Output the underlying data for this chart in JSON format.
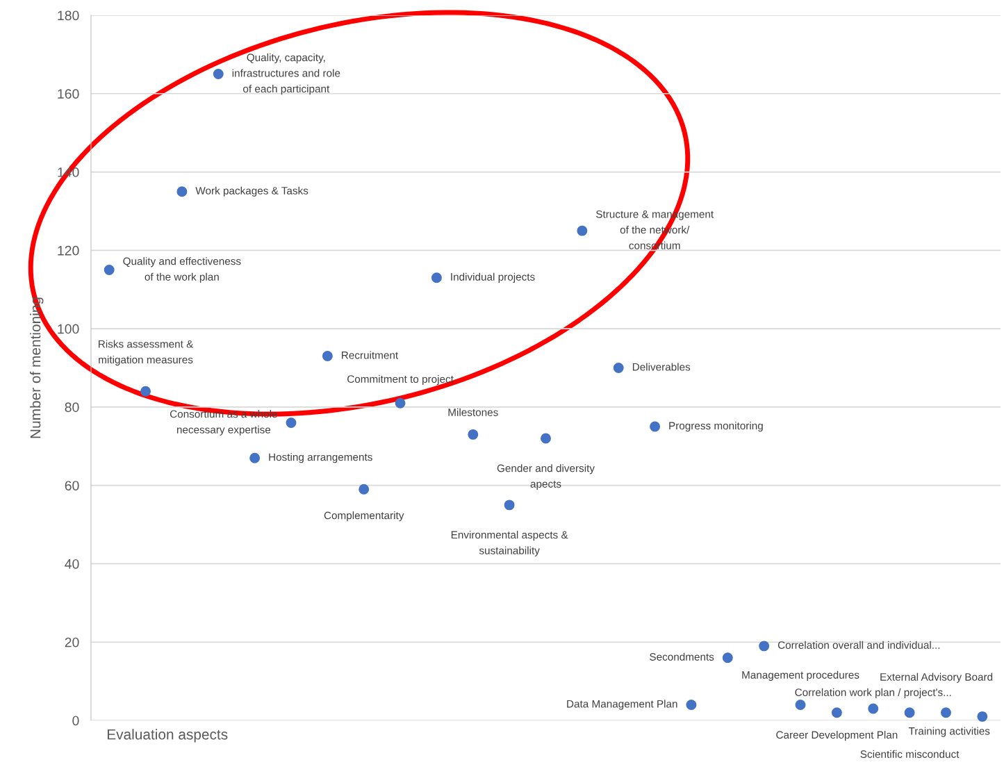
{
  "chart_data": {
    "type": "scatter",
    "xlabel": "Evaluation aspects",
    "ylabel": "Number of mentioning",
    "categories": [
      null,
      null,
      null,
      null,
      null,
      null,
      null,
      null,
      null,
      null,
      null,
      null,
      null,
      null,
      null,
      null,
      null,
      null,
      null,
      null,
      null,
      null,
      null,
      null,
      null
    ],
    "values": [
      115,
      84,
      135,
      165,
      67,
      76,
      93,
      59,
      81,
      113,
      73,
      55,
      72,
      125,
      90,
      75,
      4,
      16,
      19,
      4,
      2,
      3,
      2,
      2,
      1
    ],
    "value_labels": [
      "Quality and effectiveness\nof the work plan",
      "Risks assessment &\nmitigation measures",
      "Work packages & Tasks",
      "Quality, capacity,\ninfrastructures and role\nof each participant",
      "Hosting arrangements",
      "Consortium as a whole\nnecessary expertise",
      "Recruitment",
      "Complementarity",
      "Commitment to project",
      "Individual projects",
      "Milestones",
      "Environmental aspects &\nsustainability",
      "Gender and diversity\napects",
      "Structure & management\nof the network/\nconsortium",
      "Deliverables",
      "Progress monitoring",
      "Data Management Plan",
      "Secondments",
      "Correlation overall and individual...",
      "Management procedures",
      "Career Development Plan",
      "Correlation work plan / project's...",
      "Scientific misconduct",
      "External Advisory Board",
      "Training activities"
    ],
    "color": "#4472c4",
    "marker": "circle",
    "ylim": [
      0,
      180
    ],
    "yticks": [
      0,
      20,
      40,
      60,
      80,
      100,
      120,
      140,
      160,
      180
    ],
    "grid": "y",
    "tick_labels": "y"
  }
}
